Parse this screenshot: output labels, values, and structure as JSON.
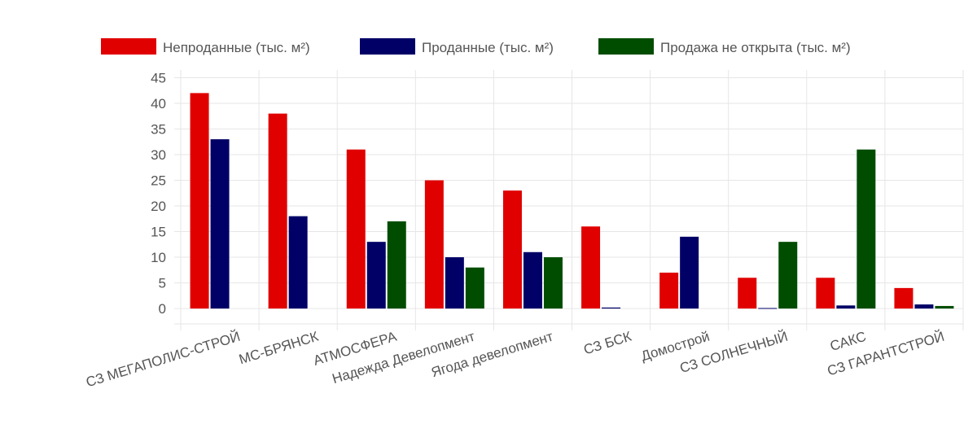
{
  "chart_data": {
    "type": "bar",
    "categories": [
      "СЗ МЕГАПОЛИС-СТРОЙ",
      "МС-БРЯНСК",
      "АТМОСФЕРА",
      "Надежда Девелопмент",
      "Ягода девелопмент",
      "СЗ БСК",
      "Домострой",
      "СЗ СОЛНЕЧНЫЙ",
      "САКС",
      "СЗ ГАРАНТСТРОЙ"
    ],
    "series": [
      {
        "name": "Непроданные (тыс. м²)",
        "color": "#e00000",
        "values": [
          42,
          38,
          31,
          25,
          23,
          16,
          7,
          6,
          6,
          4
        ]
      },
      {
        "name": "Проданные (тыс. м²)",
        "color": "#000066",
        "values": [
          33,
          18,
          13,
          10,
          11,
          0.2,
          14,
          0.1,
          0.6,
          0.8
        ]
      },
      {
        "name": "Продажа не открыта (тыс. м²)",
        "color": "#004d00",
        "values": [
          0,
          0,
          17,
          8,
          10,
          0,
          0,
          13,
          31,
          0.5
        ]
      }
    ],
    "yticks": [
      0,
      5,
      10,
      15,
      20,
      25,
      30,
      35,
      40,
      45
    ],
    "ylim": [
      -3,
      46.5
    ],
    "grid": true,
    "legend_position": "top"
  }
}
